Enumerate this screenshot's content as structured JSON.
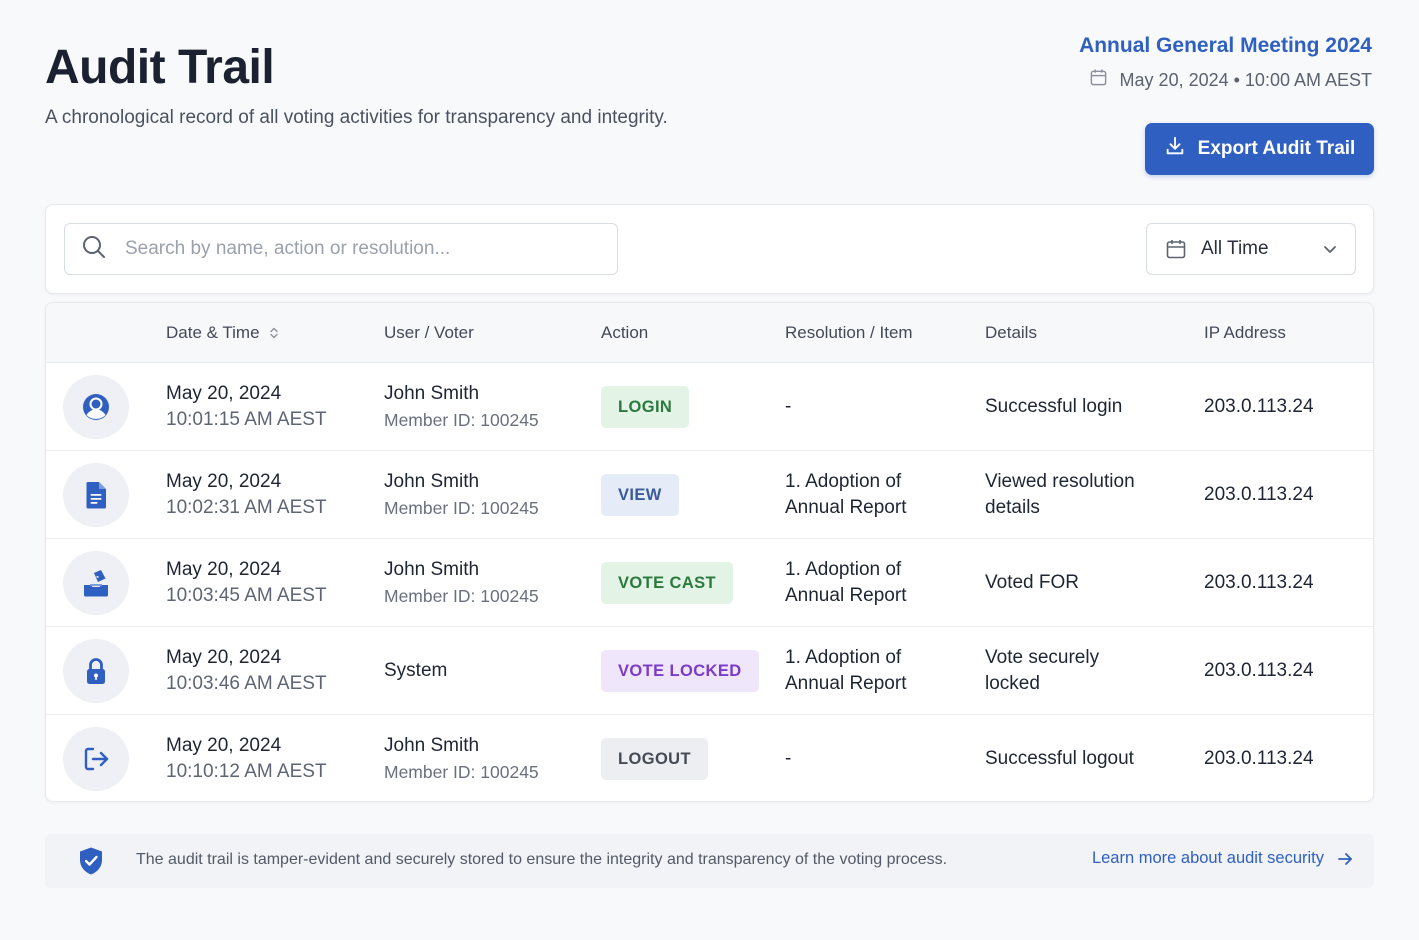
{
  "header": {
    "title": "Audit Trail",
    "subtitle": "A chronological record of all voting activities for transparency and integrity.",
    "meeting_name": "Annual General Meeting 2024",
    "meeting_datetime": "May 20, 2024 • 10:00 AM AEST",
    "export_label": "Export Audit Trail"
  },
  "filters": {
    "search_placeholder": "Search by name, action or resolution...",
    "time_range": "All Time"
  },
  "table": {
    "columns": {
      "datetime": "Date & Time",
      "user": "User / Voter",
      "action": "Action",
      "resolution": "Resolution / Item",
      "details": "Details",
      "ip": "IP Address"
    },
    "rows": [
      {
        "icon": "user-login-icon",
        "date": "May 20, 2024",
        "time": "10:01:15 AM AEST",
        "user": "John Smith",
        "member_id": "Member ID: 100245",
        "action": "LOGIN",
        "resolution_line1": "-",
        "resolution_line2": "",
        "details_line1": "Successful login",
        "details_line2": "",
        "ip": "203.0.113.24"
      },
      {
        "icon": "document-icon",
        "date": "May 20, 2024",
        "time": "10:02:31 AM AEST",
        "user": "John Smith",
        "member_id": "Member ID: 100245",
        "action": "VIEW",
        "resolution_line1": "1. Adoption of",
        "resolution_line2": "Annual Report",
        "details_line1": "Viewed resolution",
        "details_line2": "details",
        "ip": "203.0.113.24"
      },
      {
        "icon": "ballot-box-icon",
        "date": "May 20, 2024",
        "time": "10:03:45 AM AEST",
        "user": "John Smith",
        "member_id": "Member ID: 100245",
        "action": "VOTE CAST",
        "resolution_line1": "1. Adoption of",
        "resolution_line2": "Annual Report",
        "details_line1": "Voted FOR",
        "details_line2": "",
        "ip": "203.0.113.24"
      },
      {
        "icon": "lock-icon",
        "date": "May 20, 2024",
        "time": "10:03:46 AM AEST",
        "user": "System",
        "member_id": "",
        "action": "VOTE LOCKED",
        "resolution_line1": "1. Adoption of",
        "resolution_line2": "Annual Report",
        "details_line1": "Vote securely",
        "details_line2": "locked",
        "ip": "203.0.113.24"
      },
      {
        "icon": "logout-icon",
        "date": "May 20, 2024",
        "time": "10:10:12 AM AEST",
        "user": "John Smith",
        "member_id": "Member ID: 100245",
        "action": "LOGOUT",
        "resolution_line1": "-",
        "resolution_line2": "",
        "details_line1": "Successful logout",
        "details_line2": "",
        "ip": "203.0.113.24"
      }
    ]
  },
  "footer": {
    "notice": "The audit trail is tamper-evident and securely stored to ensure the integrity and transparency of the voting process.",
    "link_label": "Learn more about audit security"
  },
  "colors": {
    "accent": "#2f5fc0",
    "login": "#2b7a3d",
    "view": "#3b5a99",
    "vote_cast": "#2b7a3d",
    "vote_locked": "#7a3bc8",
    "logout": "#454b55"
  }
}
